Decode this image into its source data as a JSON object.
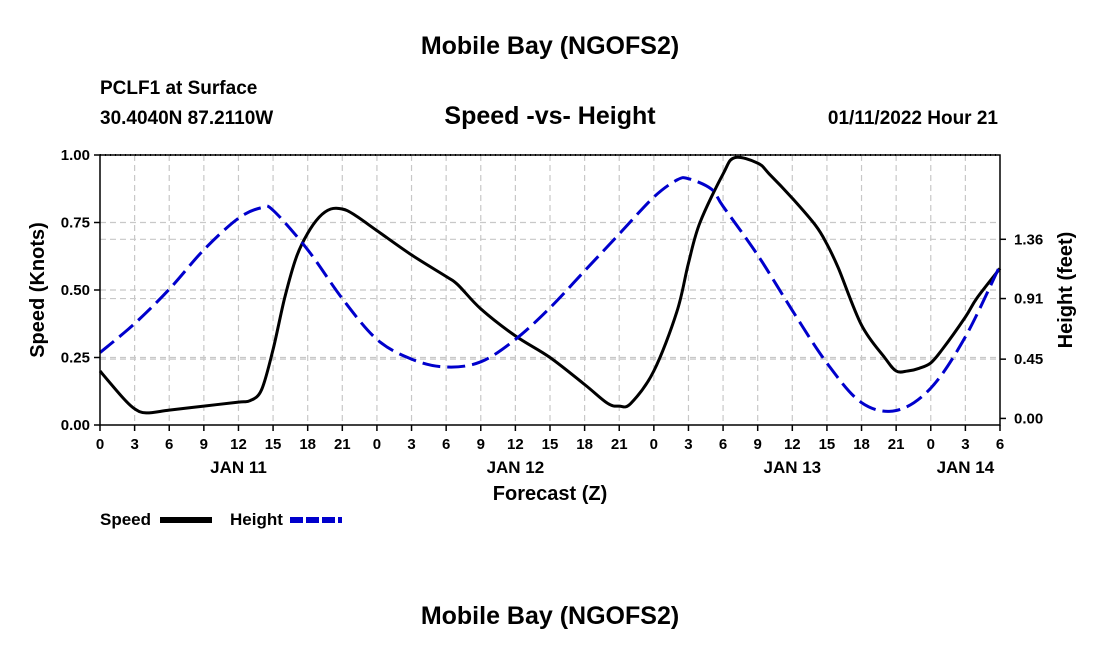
{
  "header": {
    "title": "Mobile Bay (NGOFS2)",
    "station": "PCLF1 at Surface",
    "coords": "30.4040N  87.2110W",
    "subtitle": "Speed -vs- Height",
    "timestamp": "01/11/2022 Hour 21",
    "footer_title": "Mobile Bay (NGOFS2)"
  },
  "chart_data": {
    "type": "line",
    "title": "Speed -vs- Height",
    "xlabel": "Forecast (Z)",
    "ylabel_left": "Speed (Knots)",
    "ylabel_right": "Height (feet)",
    "x_unit": "hours since Jan 11 00Z",
    "xlim": [
      0,
      78
    ],
    "ylim_left": [
      0,
      1.0
    ],
    "ylim_right": [
      -0.05,
      2.0
    ],
    "x_ticks": [
      0,
      3,
      6,
      9,
      12,
      15,
      18,
      21,
      24,
      27,
      30,
      33,
      36,
      39,
      42,
      45,
      48,
      51,
      54,
      57,
      60,
      63,
      66,
      69,
      72,
      75,
      78
    ],
    "x_tick_labels": [
      "0",
      "3",
      "6",
      "9",
      "12",
      "15",
      "18",
      "21",
      "0",
      "3",
      "6",
      "9",
      "12",
      "15",
      "18",
      "21",
      "0",
      "3",
      "6",
      "9",
      "12",
      "15",
      "18",
      "21",
      "0",
      "3",
      "6"
    ],
    "date_labels": [
      {
        "x": 12,
        "label": "JAN 11"
      },
      {
        "x": 36,
        "label": "JAN 12"
      },
      {
        "x": 60,
        "label": "JAN 13"
      },
      {
        "x": 75,
        "label": "JAN 14"
      }
    ],
    "y_left_ticks": [
      0.0,
      0.25,
      0.5,
      0.75,
      1.0
    ],
    "y_left_labels": [
      "0.00",
      "0.25",
      "0.50",
      "0.75",
      "1.00"
    ],
    "y_right_ticks": [
      0.0,
      0.45,
      0.91,
      1.36
    ],
    "y_right_labels": [
      "0.00",
      "0.45",
      "0.91",
      "1.36"
    ],
    "series": [
      {
        "name": "Speed",
        "axis": "left",
        "color": "#000000",
        "dash": "solid",
        "x": [
          0,
          2,
          3,
          4,
          6,
          9,
          12,
          13,
          14,
          15,
          16,
          17,
          18,
          19,
          20,
          21,
          22,
          24,
          27,
          30,
          31,
          33,
          36,
          39,
          42,
          44,
          45,
          46,
          48,
          50,
          51,
          52,
          54,
          55,
          57,
          58,
          60,
          62,
          63,
          64,
          66,
          68,
          69,
          70,
          71,
          72,
          73,
          75,
          76,
          78
        ],
        "values": [
          0.2,
          0.1,
          0.06,
          0.045,
          0.055,
          0.07,
          0.085,
          0.09,
          0.13,
          0.28,
          0.47,
          0.62,
          0.71,
          0.77,
          0.8,
          0.8,
          0.78,
          0.72,
          0.63,
          0.55,
          0.52,
          0.43,
          0.33,
          0.25,
          0.15,
          0.08,
          0.07,
          0.08,
          0.2,
          0.42,
          0.6,
          0.75,
          0.93,
          0.99,
          0.97,
          0.93,
          0.84,
          0.74,
          0.67,
          0.58,
          0.37,
          0.25,
          0.2,
          0.2,
          0.21,
          0.23,
          0.28,
          0.4,
          0.47,
          0.58
        ]
      },
      {
        "name": "Height",
        "axis": "right",
        "color": "#0000cc",
        "dash": "dashed",
        "x": [
          0,
          3,
          6,
          9,
          12,
          14,
          15,
          18,
          21,
          24,
          27,
          30,
          33,
          36,
          39,
          42,
          45,
          48,
          50,
          51,
          53,
          54,
          57,
          60,
          63,
          66,
          69,
          72,
          75,
          78
        ],
        "values": [
          0.5,
          0.72,
          0.98,
          1.28,
          1.52,
          1.6,
          1.58,
          1.28,
          0.91,
          0.6,
          0.45,
          0.39,
          0.43,
          0.6,
          0.84,
          1.12,
          1.4,
          1.68,
          1.81,
          1.82,
          1.74,
          1.61,
          1.24,
          0.82,
          0.42,
          0.12,
          0.06,
          0.23,
          0.62,
          1.16
        ]
      }
    ],
    "legend": [
      {
        "label": "Speed",
        "color": "#000000",
        "dash": "solid"
      },
      {
        "label": "Height",
        "color": "#0000cc",
        "dash": "dashed"
      }
    ]
  }
}
